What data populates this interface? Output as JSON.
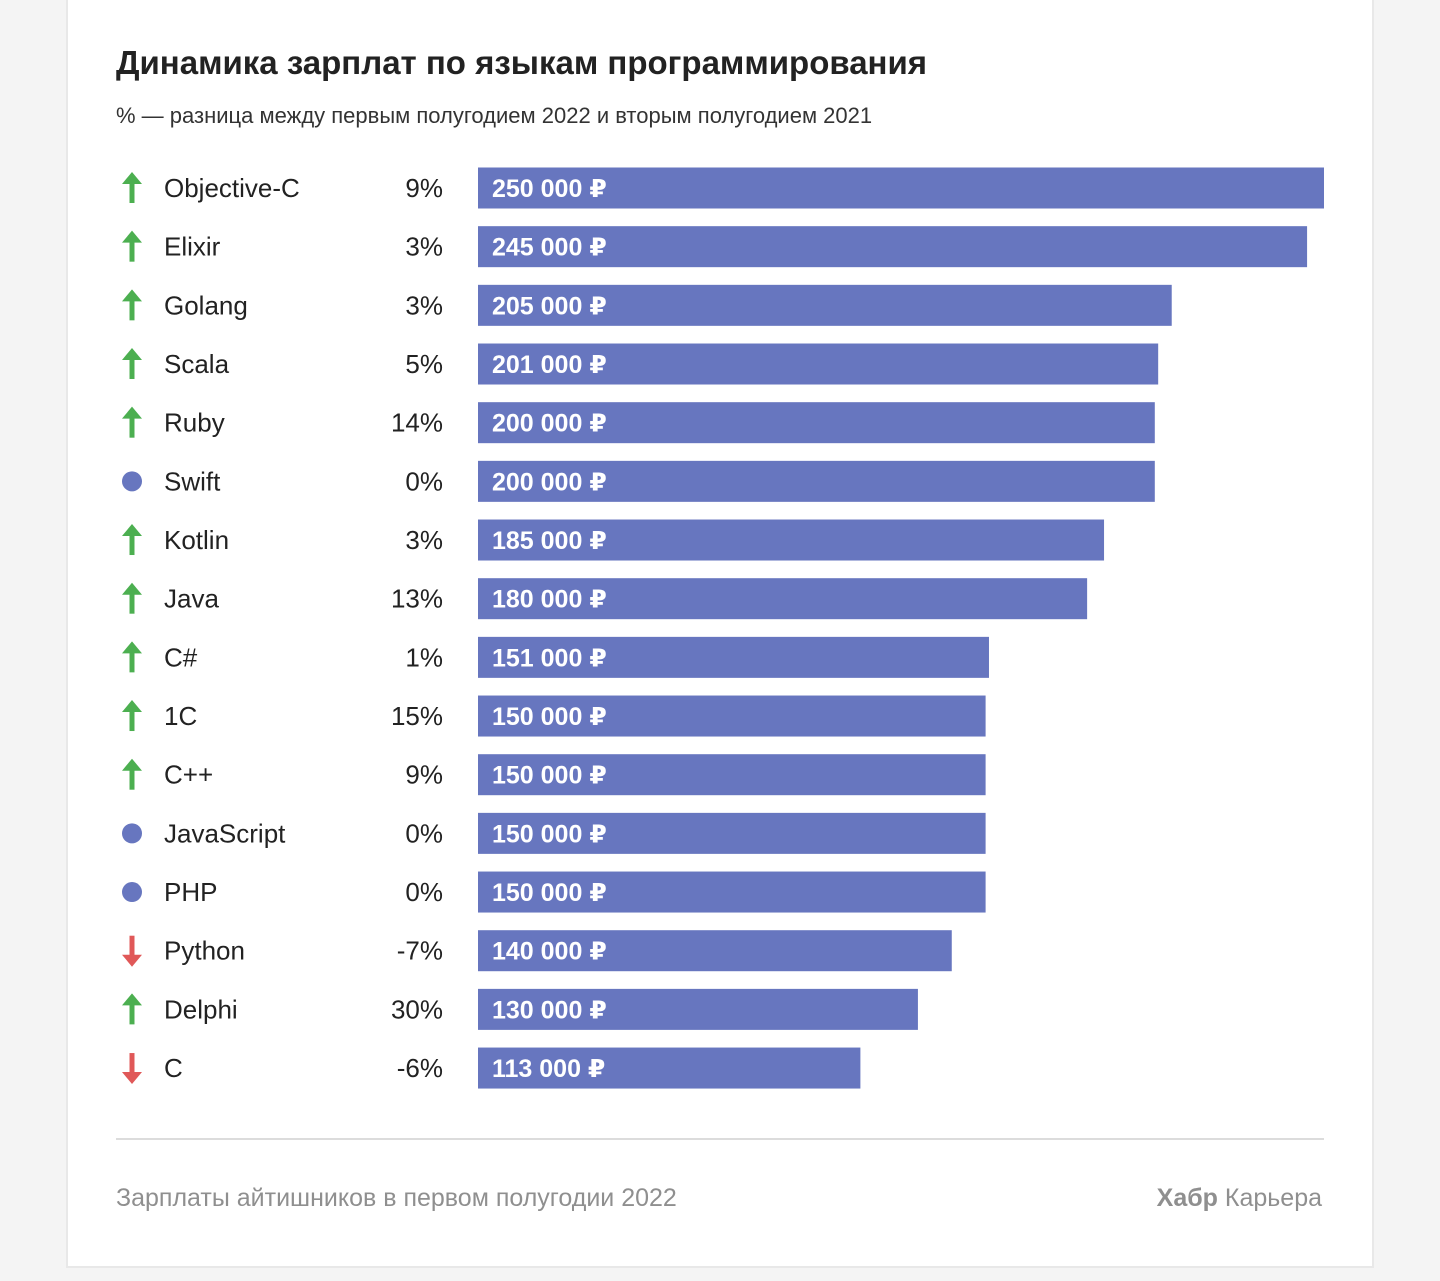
{
  "chart_data": {
    "type": "bar",
    "orientation": "horizontal",
    "title": "Динамика зарплат по языкам программирования",
    "subtitle": "% — разница между первым полугодием 2022 и вторым полугодием 2021",
    "categories": [
      "Objective-C",
      "Elixir",
      "Golang",
      "Scala",
      "Ruby",
      "Swift",
      "Kotlin",
      "Java",
      "C#",
      "1C",
      "C++",
      "JavaScript",
      "PHP",
      "Python",
      "Delphi",
      "C"
    ],
    "values": [
      250000,
      245000,
      205000,
      201000,
      200000,
      200000,
      185000,
      180000,
      151000,
      150000,
      150000,
      150000,
      150000,
      140000,
      130000,
      113000
    ],
    "value_labels": [
      "250 000 ₽",
      "245 000 ₽",
      "205 000 ₽",
      "201 000 ₽",
      "200 000 ₽",
      "200 000 ₽",
      "185 000 ₽",
      "180 000 ₽",
      "151 000 ₽",
      "150 000 ₽",
      "150 000 ₽",
      "150 000 ₽",
      "150 000 ₽",
      "140 000 ₽",
      "130 000 ₽",
      "113 000 ₽"
    ],
    "change_labels": [
      "9%",
      "3%",
      "3%",
      "5%",
      "14%",
      "0%",
      "3%",
      "13%",
      "1%",
      "15%",
      "9%",
      "0%",
      "0%",
      "-7%",
      "30%",
      "-6%"
    ],
    "change_indicators": [
      "up",
      "up",
      "up",
      "up",
      "up",
      "neutral",
      "up",
      "up",
      "up",
      "up",
      "up",
      "neutral",
      "neutral",
      "down",
      "up",
      "down"
    ],
    "xlim": [
      0,
      250000
    ],
    "grid": false,
    "colors": {
      "bar": "#6776bf",
      "bar_label": "#ffffff",
      "up": "#4caf50",
      "down": "#e05858",
      "neutral": "#6776bf"
    }
  },
  "footer": {
    "source": "Зарплаты айтишников в первом полугодии 2022",
    "brand_bold": "Хабр",
    "brand_regular": "Карьера"
  }
}
